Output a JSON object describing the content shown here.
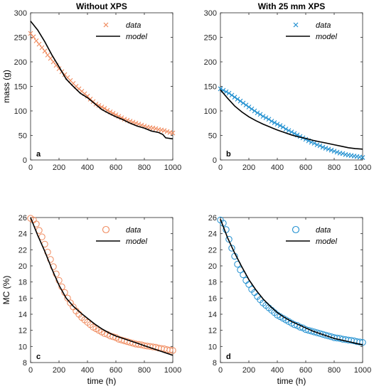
{
  "colors": {
    "orange": "#f08a5d",
    "blue": "#1f8fd0",
    "model": "#000000"
  },
  "chart_data": [
    {
      "type": "scatter",
      "panel": "a",
      "title": "Without XPS",
      "xlabel": "",
      "ylabel": "mass (g)",
      "xlim": [
        0,
        1000
      ],
      "ylim": [
        0,
        300
      ],
      "xticks": [
        0,
        200,
        400,
        600,
        800,
        1000
      ],
      "yticks": [
        0,
        50,
        100,
        150,
        200,
        250,
        300
      ],
      "legend_position": "top-right",
      "marker": "x",
      "color": "#f08a5d",
      "series": [
        {
          "name": "data",
          "kind": "marker",
          "x": [
            0,
            20,
            40,
            60,
            80,
            100,
            120,
            140,
            160,
            180,
            200,
            220,
            240,
            260,
            280,
            300,
            320,
            340,
            360,
            380,
            400,
            420,
            440,
            460,
            480,
            500,
            520,
            540,
            560,
            580,
            600,
            620,
            640,
            660,
            680,
            700,
            720,
            740,
            760,
            780,
            800,
            820,
            840,
            860,
            880,
            900,
            920,
            940,
            960,
            980,
            1000
          ],
          "y": [
            258,
            251,
            243,
            236,
            229,
            222,
            214,
            207,
            200,
            193,
            186,
            180,
            174,
            168,
            162,
            156,
            150,
            145,
            140,
            135,
            130,
            124,
            119,
            114,
            111,
            108,
            105,
            101,
            98,
            95,
            92,
            89,
            86,
            83,
            81,
            79,
            77,
            75,
            73,
            71,
            69,
            67,
            66,
            65,
            64,
            62,
            61,
            60,
            58,
            56,
            55
          ]
        },
        {
          "name": "model",
          "kind": "line",
          "x": [
            0,
            50,
            100,
            150,
            200,
            250,
            300,
            350,
            400,
            450,
            500,
            550,
            600,
            650,
            700,
            750,
            800,
            850,
            900,
            930,
            950,
            1000
          ],
          "y": [
            283,
            265,
            241,
            214,
            190,
            165,
            150,
            136,
            127,
            115,
            103,
            95,
            88,
            82,
            75,
            69,
            65,
            59,
            56,
            52,
            45,
            43
          ]
        }
      ]
    },
    {
      "type": "scatter",
      "panel": "b",
      "title": "With 25 mm XPS",
      "xlabel": "",
      "ylabel": "",
      "xlim": [
        0,
        1000
      ],
      "ylim": [
        0,
        300
      ],
      "xticks": [
        0,
        200,
        400,
        600,
        800,
        1000
      ],
      "yticks": [
        0,
        50,
        100,
        150,
        200,
        250,
        300
      ],
      "legend_position": "top-right",
      "marker": "x",
      "color": "#1f8fd0",
      "series": [
        {
          "name": "data",
          "kind": "marker",
          "x": [
            0,
            20,
            40,
            60,
            80,
            100,
            120,
            140,
            160,
            180,
            200,
            220,
            240,
            260,
            280,
            300,
            320,
            340,
            360,
            380,
            400,
            420,
            440,
            460,
            480,
            500,
            520,
            540,
            560,
            580,
            600,
            620,
            640,
            660,
            680,
            700,
            720,
            740,
            760,
            780,
            800,
            820,
            840,
            860,
            880,
            900,
            920,
            940,
            960,
            980,
            1000
          ],
          "y": [
            145,
            142,
            139,
            136,
            132,
            128,
            124,
            120,
            116,
            112,
            108,
            104,
            100,
            96,
            93,
            89,
            86,
            83,
            79,
            76,
            73,
            70,
            67,
            63,
            60,
            57,
            54,
            51,
            48,
            45,
            42,
            39,
            36,
            34,
            31,
            29,
            26,
            24,
            22,
            20,
            18,
            16,
            14,
            13,
            11,
            10,
            9,
            8,
            7,
            6,
            5
          ]
        },
        {
          "name": "model",
          "kind": "line",
          "x": [
            0,
            50,
            100,
            150,
            200,
            250,
            300,
            350,
            400,
            450,
            500,
            550,
            600,
            650,
            700,
            750,
            800,
            850,
            900,
            950,
            1000
          ],
          "y": [
            143,
            126,
            110,
            98,
            88,
            80,
            73,
            67,
            61,
            56,
            51,
            47,
            44,
            40,
            37,
            34,
            31,
            28,
            25,
            23,
            22
          ]
        }
      ]
    },
    {
      "type": "scatter",
      "panel": "c",
      "title": "",
      "xlabel": "time (h)",
      "ylabel": "MC (%)",
      "xlim": [
        0,
        1000
      ],
      "ylim": [
        8,
        26
      ],
      "xticks": [
        0,
        200,
        400,
        600,
        800,
        1000
      ],
      "yticks": [
        8,
        10,
        12,
        14,
        16,
        18,
        20,
        22,
        24,
        26
      ],
      "legend_position": "top-right",
      "marker": "o",
      "color": "#f08a5d",
      "series": [
        {
          "name": "data",
          "kind": "marker",
          "x": [
            0,
            20,
            40,
            60,
            80,
            100,
            120,
            140,
            160,
            180,
            200,
            220,
            240,
            260,
            280,
            300,
            320,
            340,
            360,
            380,
            400,
            420,
            440,
            460,
            480,
            500,
            520,
            540,
            560,
            580,
            600,
            620,
            640,
            660,
            680,
            700,
            720,
            740,
            760,
            780,
            800,
            820,
            840,
            860,
            880,
            900,
            920,
            940,
            960,
            980,
            1000
          ],
          "y": [
            25.9,
            25.7,
            25.2,
            24.4,
            23.6,
            22.7,
            21.7,
            20.8,
            19.9,
            19.0,
            18.2,
            17.4,
            16.7,
            16.0,
            15.4,
            14.9,
            14.4,
            14.0,
            13.6,
            13.3,
            13.0,
            12.7,
            12.4,
            12.2,
            12.0,
            11.8,
            11.6,
            11.5,
            11.3,
            11.2,
            11.1,
            10.9,
            10.8,
            10.7,
            10.6,
            10.5,
            10.4,
            10.3,
            10.25,
            10.2,
            10.1,
            10.05,
            10.0,
            9.95,
            9.9,
            9.8,
            9.75,
            9.7,
            9.6,
            9.55,
            9.5
          ]
        },
        {
          "name": "model",
          "kind": "line",
          "x": [
            0,
            50,
            100,
            150,
            200,
            250,
            300,
            350,
            400,
            450,
            500,
            550,
            600,
            650,
            700,
            750,
            800,
            850,
            900,
            950,
            1000
          ],
          "y": [
            26,
            23.8,
            21.8,
            19.6,
            17.6,
            16.0,
            15.0,
            14.2,
            13.5,
            12.8,
            12.2,
            11.7,
            11.3,
            11.0,
            10.7,
            10.4,
            10.1,
            9.8,
            9.5,
            9.2,
            8.9
          ]
        }
      ]
    },
    {
      "type": "scatter",
      "panel": "d",
      "title": "",
      "xlabel": "time (h)",
      "ylabel": "",
      "xlim": [
        0,
        1000
      ],
      "ylim": [
        8,
        26
      ],
      "xticks": [
        0,
        200,
        400,
        600,
        800,
        1000
      ],
      "yticks": [
        8,
        10,
        12,
        14,
        16,
        18,
        20,
        22,
        24,
        26
      ],
      "legend_position": "top-right",
      "marker": "o",
      "color": "#1f8fd0",
      "series": [
        {
          "name": "data",
          "kind": "marker",
          "x": [
            0,
            20,
            40,
            60,
            80,
            100,
            120,
            140,
            160,
            180,
            200,
            220,
            240,
            260,
            280,
            300,
            320,
            340,
            360,
            380,
            400,
            420,
            440,
            460,
            480,
            500,
            520,
            540,
            560,
            580,
            600,
            620,
            640,
            660,
            680,
            700,
            720,
            740,
            760,
            780,
            800,
            820,
            840,
            860,
            880,
            900,
            920,
            940,
            960,
            980,
            1000
          ],
          "y": [
            25.7,
            25.3,
            24.5,
            23.3,
            22.2,
            21.2,
            20.2,
            19.5,
            18.9,
            18.2,
            17.7,
            17.1,
            16.7,
            16.2,
            15.8,
            15.4,
            15.1,
            14.8,
            14.5,
            14.2,
            13.9,
            13.7,
            13.5,
            13.3,
            13.1,
            12.9,
            12.7,
            12.6,
            12.4,
            12.3,
            12.1,
            12.0,
            11.9,
            11.8,
            11.7,
            11.6,
            11.5,
            11.4,
            11.3,
            11.2,
            11.1,
            11.05,
            11.0,
            10.9,
            10.85,
            10.8,
            10.75,
            10.7,
            10.6,
            10.55,
            10.5
          ]
        },
        {
          "name": "model",
          "kind": "line",
          "x": [
            0,
            50,
            100,
            150,
            200,
            250,
            300,
            350,
            400,
            450,
            500,
            550,
            600,
            650,
            700,
            750,
            800,
            850,
            900,
            950,
            1000
          ],
          "y": [
            25.8,
            23.5,
            21.6,
            19.9,
            18.3,
            17.0,
            15.9,
            15.0,
            14.2,
            13.6,
            13.1,
            12.7,
            12.3,
            11.9,
            11.6,
            11.3,
            11.0,
            10.8,
            10.6,
            10.4,
            10.2
          ]
        }
      ]
    }
  ]
}
